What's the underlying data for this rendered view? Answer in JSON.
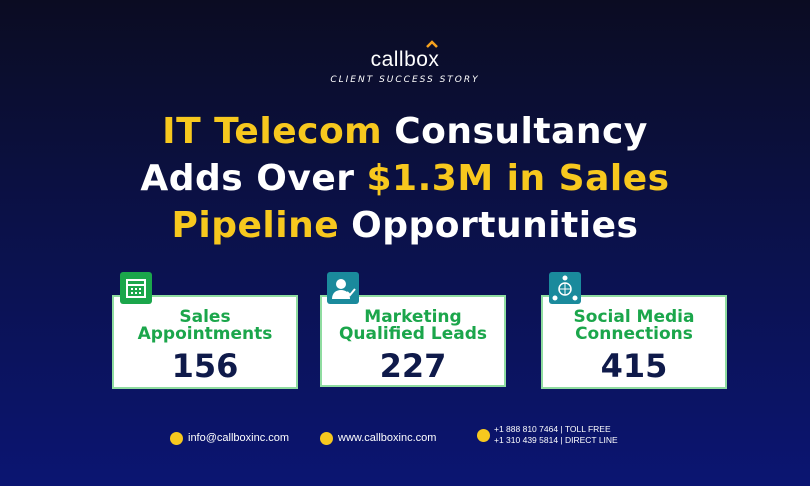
{
  "header": {
    "brand": "callbox",
    "tagline": "CLIENT SUCCESS STORY"
  },
  "title": {
    "lines": [
      [
        {
          "text": "IT Telecom",
          "highlight": true
        },
        {
          "text": "Consultancy",
          "highlight": false
        }
      ],
      [
        {
          "text": "Adds Over",
          "highlight": false
        },
        {
          "text": "$1.3M in Sales",
          "highlight": true
        }
      ],
      [
        {
          "text": "Pipeline",
          "highlight": true
        },
        {
          "text": "Opportunities",
          "highlight": false
        }
      ]
    ]
  },
  "stats": [
    {
      "label": [
        "Sales",
        "Appointments"
      ],
      "value": 156
    },
    {
      "label": [
        "Marketing",
        "Qualified Leads"
      ],
      "value": 227
    },
    {
      "label": [
        "Social Media",
        "Connections"
      ],
      "value": 415
    }
  ],
  "footer": {
    "email": "info@callboxinc.com",
    "website": "www.callboxinc.com",
    "phones": [
      "+1 888 810 7464 | TOLL FREE",
      "+1 310 439 5814 | DIRECT LINE"
    ]
  }
}
